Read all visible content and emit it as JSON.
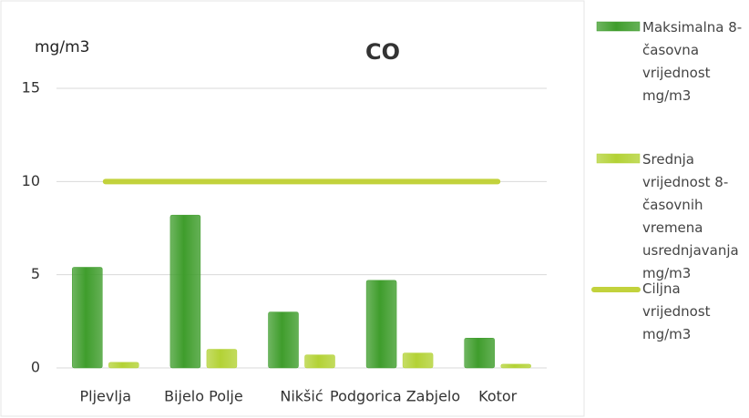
{
  "chart_data": {
    "type": "bar",
    "title": "CO",
    "y_label": "mg/m3",
    "categories": [
      "Pljevlja",
      "Bijelo Polje",
      "Nikšić",
      "Podgorica Zabjelo",
      "Kotor"
    ],
    "series": [
      {
        "name": "Maksimalna 8-časovna vrijednost mg/m3",
        "color": "#3f9d2c",
        "values": [
          5.4,
          8.2,
          3.0,
          4.7,
          1.6
        ]
      },
      {
        "name": "Srednja vrijednost 8-časovnih vremena usrednjavanja mg/m3",
        "color": "#b3d235",
        "values": [
          0.3,
          1.0,
          0.7,
          0.8,
          0.2
        ]
      },
      {
        "name": "Ciljna vrijednost mg/m3",
        "type": "line",
        "color": "#c2d23c",
        "values": [
          10,
          10,
          10,
          10,
          10
        ]
      }
    ],
    "ylim": [
      0,
      15
    ],
    "yticks": [
      0,
      5,
      10,
      15
    ],
    "grid": true,
    "legend": "right"
  }
}
